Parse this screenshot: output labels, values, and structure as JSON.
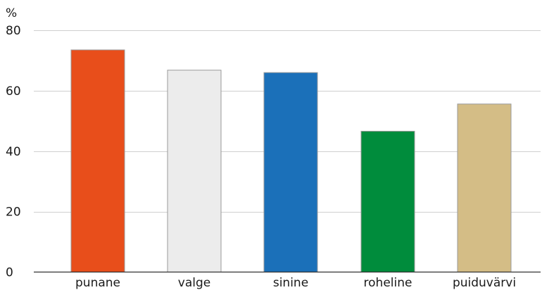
{
  "chart_data": {
    "type": "bar",
    "title": "",
    "xlabel": "",
    "ylabel": "%",
    "ylim": [
      0,
      80
    ],
    "yticks": [
      0,
      20,
      40,
      60,
      80
    ],
    "grid": true,
    "legend": "none",
    "categories": [
      "punane",
      "valge",
      "sinine",
      "roheline",
      "puiduvärvi"
    ],
    "values": [
      73.5,
      66.8,
      66.0,
      46.6,
      55.6
    ],
    "colors": [
      "#e84e1b",
      "#ececec",
      "#1b70b9",
      "#008c3c",
      "#d4bd86"
    ]
  }
}
